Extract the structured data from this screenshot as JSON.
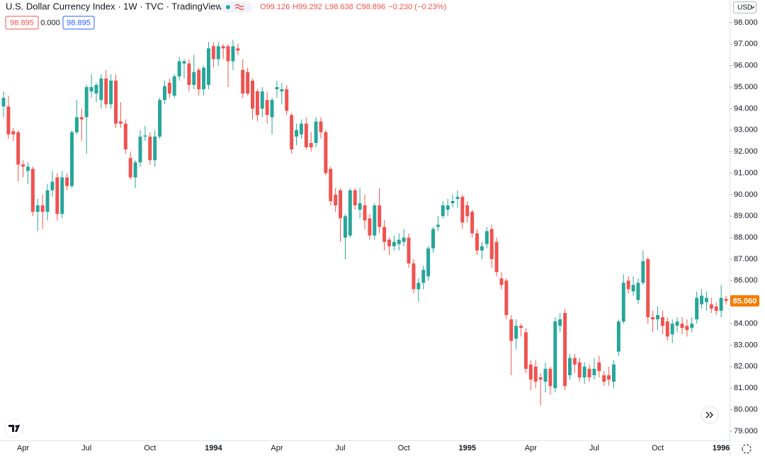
{
  "chart_data": {
    "type": "candlestick",
    "title": "U.S. Dollar Currency Index · 1W · TVC · TradingView",
    "quote": [
      "O99.126",
      "H99.292",
      "L98.638",
      "C98.896",
      "−0.230 (−0.23%)"
    ],
    "indicator_values": [
      "98.895",
      "0.000",
      "98.895"
    ],
    "currency": "USD",
    "last_price": {
      "value": 85.06,
      "label": "85.060"
    },
    "up_color": "#26a69a",
    "down_color": "#ef5350",
    "last_price_color": "#f57c00",
    "grid": false,
    "categories": [
      null,
      null,
      null,
      null,
      "Apr",
      null,
      null,
      null,
      null,
      null,
      null,
      null,
      null,
      null,
      null,
      null,
      null,
      "Jul",
      null,
      null,
      null,
      null,
      null,
      null,
      null,
      null,
      null,
      null,
      null,
      null,
      "Oct",
      null,
      null,
      null,
      null,
      null,
      null,
      null,
      null,
      null,
      null,
      null,
      null,
      "1994",
      null,
      null,
      null,
      null,
      null,
      null,
      null,
      null,
      null,
      null,
      null,
      null,
      "Apr",
      null,
      null,
      null,
      null,
      null,
      null,
      null,
      null,
      null,
      null,
      null,
      null,
      "Jul",
      null,
      null,
      null,
      null,
      null,
      null,
      null,
      null,
      null,
      null,
      null,
      null,
      "Oct",
      null,
      null,
      null,
      null,
      null,
      null,
      null,
      null,
      null,
      null,
      null,
      null,
      "1995",
      null,
      null,
      null,
      null,
      null,
      null,
      null,
      null,
      null,
      null,
      null,
      null,
      "Apr",
      null,
      null,
      null,
      null,
      null,
      null,
      null,
      null,
      null,
      null,
      null,
      null,
      "Jul",
      null,
      null,
      null,
      null,
      null,
      null,
      null,
      null,
      null,
      null,
      null,
      null,
      "Oct",
      null,
      null,
      null,
      null,
      null,
      null,
      null,
      null,
      null,
      null,
      null,
      null,
      "1996",
      null
    ],
    "open": [
      94.1,
      94.1,
      92.95,
      92.9,
      91.4,
      91.1,
      91.2,
      89.2,
      89.5,
      89.2,
      90.2,
      90.8,
      89.1,
      90.8,
      90.4,
      92.9,
      93.6,
      93.6,
      94.8,
      94.7,
      94.4,
      95.4,
      94.2,
      95.3,
      93.4,
      93.3,
      91.7,
      90.8,
      91.5,
      92.7,
      92.7,
      91.6,
      92.7,
      94.4,
      95.2,
      94.6,
      95.5,
      96.1,
      96.1,
      95.1,
      95.8,
      94.9,
      95.1,
      96.9,
      96.3,
      96.9,
      96.9,
      96.2,
      96.8,
      95.8,
      95.7,
      95.3,
      94.8,
      94.0,
      94.4,
      93.6,
      94.9,
      94.8,
      94.9,
      93.7,
      92.7,
      92.8,
      93.3,
      92.4,
      92.4,
      93.4,
      92.9,
      91.2,
      90.0,
      90.2,
      88.0,
      88.1,
      90.2,
      89.3,
      89.5,
      88.9,
      88.1,
      89.5,
      88.5,
      87.9,
      87.6,
      87.7,
      87.8,
      88.0,
      86.8,
      85.6,
      85.9,
      86.2,
      87.5,
      88.5,
      89.0,
      89.3,
      89.6,
      89.8,
      89.9,
      89.5,
      89.2,
      88.2,
      87.4,
      87.7,
      88.4,
      87.8,
      86.1,
      86.0,
      84.2,
      83.3,
      83.9,
      83.6,
      82.1,
      82.0,
      81.5,
      81.3,
      81.9,
      81.0,
      83.9,
      84.5,
      81.6,
      82.4,
      82.2,
      81.5,
      81.9,
      81.6,
      82.2,
      81.6,
      81.6,
      81.3,
      82.7,
      84.1,
      86.0,
      85.5,
      85.1,
      85.9,
      87.0,
      84.3,
      84.2,
      84.3,
      84.1,
      83.5,
      83.9,
      84.0,
      83.9,
      83.8,
      84.2,
      84.9,
      85.0,
      84.9,
      84.8,
      84.6,
      85.15
    ],
    "high": [
      94.8,
      94.6,
      93.1,
      93.0,
      91.6,
      91.5,
      91.3,
      89.8,
      90.0,
      90.5,
      91.1,
      91.0,
      91.1,
      91.0,
      93.0,
      94.4,
      94.0,
      95.1,
      95.6,
      95.2,
      95.6,
      95.8,
      95.6,
      95.6,
      94.3,
      93.5,
      92.0,
      91.6,
      93.0,
      93.2,
      92.9,
      93.0,
      94.5,
      95.3,
      95.4,
      95.6,
      96.4,
      96.3,
      96.3,
      96.5,
      95.9,
      96.0,
      97.1,
      97.1,
      97.1,
      97.0,
      97.0,
      97.2,
      97.0,
      96.3,
      95.9,
      95.4,
      94.9,
      95.0,
      94.8,
      94.5,
      95.3,
      95.2,
      95.1,
      93.8,
      93.3,
      93.5,
      93.6,
      92.9,
      93.6,
      93.6,
      93.0,
      91.3,
      90.3,
      90.3,
      89.1,
      90.3,
      90.3,
      90.3,
      90.0,
      89.1,
      89.6,
      90.3,
      88.8,
      88.0,
      88.1,
      88.2,
      88.4,
      88.2,
      87.0,
      86.1,
      86.7,
      87.6,
      88.5,
      89.0,
      89.7,
      89.8,
      90.0,
      90.2,
      90.0,
      89.7,
      89.3,
      88.4,
      87.8,
      88.5,
      88.6,
      88.0,
      86.4,
      86.1,
      84.4,
      84.2,
      84.0,
      83.8,
      82.3,
      82.3,
      81.7,
      82.2,
      82.0,
      84.3,
      84.5,
      84.7,
      82.6,
      82.6,
      82.4,
      82.2,
      82.1,
      82.4,
      82.5,
      81.8,
      82.0,
      82.3,
      84.2,
      86.3,
      86.2,
      86.2,
      86.1,
      87.4,
      87.1,
      84.6,
      84.8,
      84.6,
      84.3,
      84.2,
      84.3,
      84.3,
      84.2,
      84.3,
      85.5,
      85.6,
      85.5,
      85.2,
      85.0,
      85.8,
      85.3
    ],
    "low": [
      93.6,
      92.6,
      92.5,
      90.6,
      90.8,
      90.5,
      89.0,
      88.3,
      88.4,
      88.8,
      89.9,
      88.8,
      88.9,
      90.2,
      90.3,
      92.8,
      92.5,
      91.9,
      94.5,
      94.3,
      94.0,
      94.0,
      94.0,
      93.1,
      93.1,
      91.9,
      90.7,
      90.3,
      91.3,
      92.5,
      91.4,
      91.3,
      92.6,
      94.2,
      94.5,
      94.5,
      95.3,
      95.4,
      94.8,
      94.9,
      94.6,
      94.6,
      94.9,
      95.9,
      96.0,
      96.3,
      95.0,
      95.8,
      96.5,
      94.5,
      94.6,
      93.5,
      93.4,
      93.6,
      93.3,
      92.8,
      94.5,
      94.2,
      93.7,
      91.9,
      92.3,
      92.6,
      92.1,
      92.0,
      92.2,
      92.6,
      90.9,
      89.5,
      89.2,
      87.8,
      87.0,
      88.0,
      89.3,
      88.9,
      88.4,
      87.9,
      87.9,
      88.2,
      87.4,
      87.2,
      87.4,
      87.4,
      87.6,
      86.6,
      85.4,
      85.0,
      85.6,
      86.0,
      87.3,
      88.3,
      88.9,
      89.0,
      89.4,
      89.4,
      88.4,
      88.7,
      88.0,
      87.2,
      87.0,
      87.5,
      86.6,
      86.2,
      85.6,
      84.2,
      81.6,
      82.8,
      83.4,
      81.7,
      80.9,
      81.0,
      80.2,
      80.8,
      80.7,
      80.8,
      83.6,
      80.9,
      81.4,
      81.7,
      81.3,
      81.2,
      81.3,
      81.4,
      81.5,
      81.1,
      81.1,
      81.0,
      82.5,
      84.0,
      85.4,
      85.3,
      84.9,
      85.8,
      84.0,
      83.6,
      83.7,
      83.5,
      83.2,
      83.1,
      83.6,
      83.5,
      83.4,
      83.6,
      84.0,
      84.7,
      84.6,
      84.5,
      84.4,
      84.3,
      84.9
    ],
    "close": [
      94.5,
      92.8,
      92.8,
      91.4,
      91.3,
      91.3,
      89.2,
      89.5,
      89.2,
      90.2,
      90.6,
      89.1,
      90.8,
      90.4,
      92.9,
      93.6,
      93.5,
      95.0,
      95.0,
      95.1,
      95.4,
      94.2,
      95.3,
      93.3,
      93.3,
      92.1,
      90.8,
      91.5,
      92.7,
      92.75,
      91.6,
      92.7,
      94.4,
      95.05,
      94.7,
      95.5,
      96.2,
      96.2,
      95.1,
      95.7,
      94.9,
      95.9,
      96.8,
      96.3,
      96.9,
      96.8,
      96.2,
      96.9,
      96.7,
      94.7,
      94.7,
      94.0,
      93.7,
      94.8,
      93.7,
      94.4,
      95.0,
      94.9,
      93.9,
      92.1,
      93.0,
      93.3,
      92.2,
      92.2,
      93.4,
      92.9,
      91.0,
      89.7,
      89.5,
      88.9,
      89.0,
      90.2,
      89.5,
      89.6,
      88.8,
      88.1,
      89.5,
      88.5,
      87.8,
      87.6,
      87.8,
      87.9,
      88.0,
      86.8,
      85.6,
      85.9,
      86.5,
      87.5,
      88.4,
      88.6,
      89.5,
      89.5,
      89.7,
      89.9,
      88.7,
      89.0,
      88.2,
      87.4,
      87.6,
      88.3,
      87.0,
      86.4,
      85.8,
      84.4,
      83.2,
      83.9,
      83.8,
      81.9,
      81.4,
      81.3,
      81.4,
      81.9,
      81.1,
      84.1,
      84.2,
      81.1,
      82.4,
      82.1,
      81.5,
      82.0,
      81.5,
      81.9,
      81.8,
      81.3,
      81.4,
      82.1,
      84.1,
      85.9,
      85.6,
      85.8,
      85.9,
      86.9,
      84.3,
      84.2,
      84.4,
      83.9,
      83.4,
      84.0,
      84.1,
      83.8,
      83.7,
      84.0,
      85.2,
      85.3,
      85.2,
      84.7,
      84.6,
      85.2,
      85.06
    ],
    "ylim": [
      78.57,
      99.05
    ],
    "yticks": [
      {
        "value": 98,
        "label": "98.000"
      },
      {
        "value": 97,
        "label": "97.000"
      },
      {
        "value": 96,
        "label": "96.000"
      },
      {
        "value": 95,
        "label": "95.000"
      },
      {
        "value": 94,
        "label": "94.000"
      },
      {
        "value": 93,
        "label": "93.000"
      },
      {
        "value": 92,
        "label": "92.000"
      },
      {
        "value": 91,
        "label": "91.000"
      },
      {
        "value": 90,
        "label": "90.000"
      },
      {
        "value": 89,
        "label": "89.000"
      },
      {
        "value": 88,
        "label": "88.000"
      },
      {
        "value": 87,
        "label": "87.000"
      },
      {
        "value": 86,
        "label": "86.000"
      },
      {
        "value": 85,
        "label": "85.000"
      },
      {
        "value": 84,
        "label": "84.000"
      },
      {
        "value": 83,
        "label": "83.000"
      },
      {
        "value": 82,
        "label": "82.000"
      },
      {
        "value": 81,
        "label": "81.000"
      },
      {
        "value": 80,
        "label": "80.000"
      },
      {
        "value": 79,
        "label": "79.000"
      }
    ]
  }
}
